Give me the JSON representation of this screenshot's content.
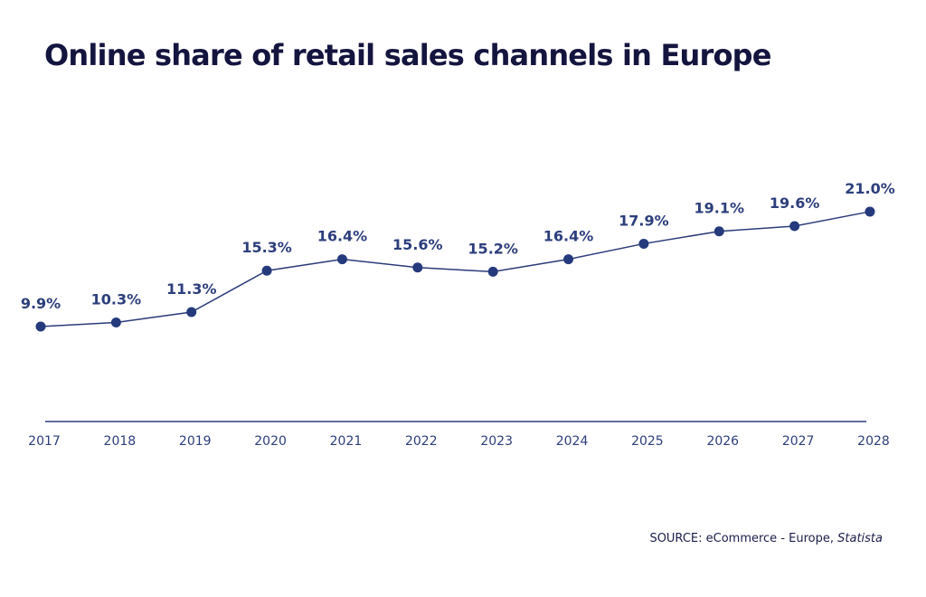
{
  "title": "Online share of retail sales channels in Europe",
  "source": {
    "prefix": "SOURCE: eCommerce - Europe, ",
    "publisher": "Statista"
  },
  "colors": {
    "line": "#2b3b7a",
    "marker": "#253a7d",
    "axis": "#2b3b7a",
    "text": "#2c3e7c"
  },
  "chart_data": {
    "type": "line",
    "title": "Online share of retail sales channels in Europe",
    "xlabel": "",
    "ylabel": "",
    "ylim": [
      0,
      25
    ],
    "grid": false,
    "legend": "none",
    "categories": [
      "2017",
      "2018",
      "2019",
      "2020",
      "2021",
      "2022",
      "2023",
      "2024",
      "2025",
      "2026",
      "2027",
      "2028"
    ],
    "values": [
      9.9,
      10.3,
      11.3,
      15.3,
      16.4,
      15.6,
      15.2,
      16.4,
      17.9,
      19.1,
      19.6,
      21.0
    ],
    "labels": [
      "9.9%",
      "10.3%",
      "11.3%",
      "15.3%",
      "16.4%",
      "15.6%",
      "15.2%",
      "16.4%",
      "17.9%",
      "19.1%",
      "19.6%",
      "21.0%"
    ]
  }
}
